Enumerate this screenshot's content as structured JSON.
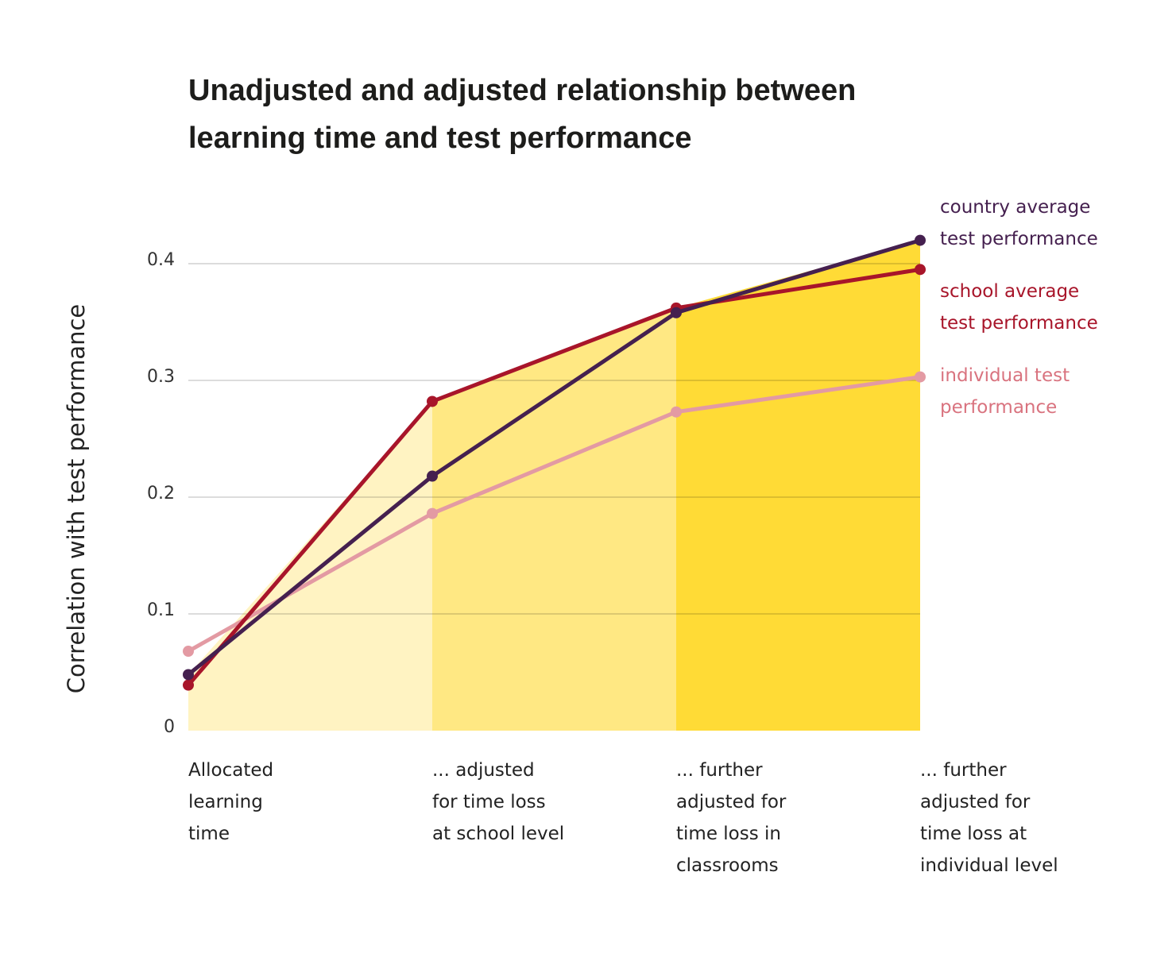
{
  "chart_data": {
    "type": "line",
    "title": "Unadjusted and adjusted relationship between learning time and test performance",
    "title_lines": [
      "Unadjusted and adjusted relationship between",
      "learning time and test performance"
    ],
    "ylabel": "Correlation with test performance",
    "xlabel": "",
    "ylim": [
      0,
      0.4
    ],
    "yticks": [
      0,
      0.1,
      0.2,
      0.3,
      0.4
    ],
    "ytick_labels": [
      "0",
      "0.1",
      "0.2",
      "0.3",
      "0.4"
    ],
    "grid": true,
    "legend_placement": "right, at line ends",
    "categories": [
      [
        "Allocated",
        "learning",
        "time"
      ],
      [
        "... adjusted",
        "for time loss",
        "at school level"
      ],
      [
        "... further",
        "adjusted for",
        "time loss in",
        "classrooms"
      ],
      [
        "... further",
        "adjusted for",
        "time loss at",
        "individual level"
      ]
    ],
    "band_colors": [
      "#FFF3C2",
      "#FFE883",
      "#FFDB36"
    ],
    "series": [
      {
        "name": "country average test performance",
        "label_lines": [
          "country average",
          "test performance"
        ],
        "color": "#45204F",
        "label_color": "#45204F",
        "values": [
          0.048,
          0.218,
          0.358,
          0.42
        ]
      },
      {
        "name": "school average test performance",
        "label_lines": [
          "school average",
          "test performance"
        ],
        "color": "#A8152A",
        "label_color": "#A8152A",
        "values": [
          0.039,
          0.282,
          0.362,
          0.395
        ]
      },
      {
        "name": "individual test performance",
        "label_lines": [
          "individual test",
          "performance"
        ],
        "color": "#E39AA3",
        "label_color": "#D9737F",
        "values": [
          0.068,
          0.186,
          0.273,
          0.303
        ]
      }
    ]
  }
}
